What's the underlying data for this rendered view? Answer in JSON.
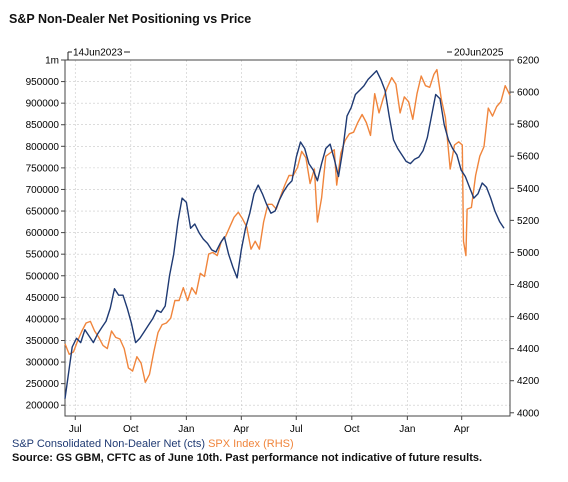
{
  "title": "S&P Non-Dealer Net Positioning vs Price",
  "legend": {
    "nd_label": "S&P Consolidated Non-Dealer Net (cts)",
    "spx_label": "SPX Index (RHS)"
  },
  "source": "Source: GS GBM, CFTC as of June 10th. Past performance not indicative of future results.",
  "colors": {
    "nd": "#1f3a73",
    "spx": "#f0853c",
    "grid": "#c8c8c8"
  },
  "chart_data": {
    "type": "line",
    "date_start_label": "14Jun2023",
    "date_end_label": "20Jun2025",
    "x_ticks": [
      "Jul",
      "Oct",
      "Jan",
      "Apr",
      "Jul",
      "Oct",
      "Jan",
      "Apr"
    ],
    "x_tick_dates": [
      "2023-07-01",
      "2023-10-01",
      "2024-01-01",
      "2024-04-01",
      "2024-07-01",
      "2024-10-01",
      "2025-01-01",
      "2025-04-01"
    ],
    "xlim": [
      "2023-06-14",
      "2025-06-20"
    ],
    "y_left": {
      "ylim": [
        175000,
        1000000
      ],
      "ticks": [
        200000,
        250000,
        300000,
        350000,
        400000,
        450000,
        500000,
        550000,
        600000,
        650000,
        700000,
        750000,
        800000,
        850000,
        900000,
        950000,
        1000000
      ],
      "tick_labels": [
        "200000",
        "250000",
        "300000",
        "350000",
        "400000",
        "450000",
        "500000",
        "550000",
        "600000",
        "650000",
        "700000",
        "750000",
        "800000",
        "850000",
        "900000",
        "950000",
        "1m"
      ]
    },
    "y_right": {
      "ylim": [
        3980,
        6200
      ],
      "ticks": [
        4000,
        4200,
        4400,
        4600,
        4800,
        5000,
        5200,
        5400,
        5600,
        5800,
        6000,
        6200
      ],
      "tick_labels": [
        "4000",
        "4200",
        "4400",
        "4600",
        "4800",
        "5000",
        "5200",
        "5400",
        "5600",
        "5800",
        "6000",
        "6200"
      ]
    },
    "grid": true,
    "series": [
      {
        "name": "S&P Consolidated Non-Dealer Net (cts)",
        "axis": "left",
        "points": [
          [
            "2023-06-14",
            215000
          ],
          [
            "2023-06-20",
            275000
          ],
          [
            "2023-06-26",
            335000
          ],
          [
            "2023-07-03",
            355000
          ],
          [
            "2023-07-10",
            345000
          ],
          [
            "2023-07-17",
            375000
          ],
          [
            "2023-07-24",
            360000
          ],
          [
            "2023-07-31",
            345000
          ],
          [
            "2023-08-07",
            365000
          ],
          [
            "2023-08-14",
            380000
          ],
          [
            "2023-08-21",
            395000
          ],
          [
            "2023-08-28",
            425000
          ],
          [
            "2023-09-04",
            470000
          ],
          [
            "2023-09-11",
            455000
          ],
          [
            "2023-09-18",
            455000
          ],
          [
            "2023-09-25",
            425000
          ],
          [
            "2023-10-02",
            390000
          ],
          [
            "2023-10-09",
            345000
          ],
          [
            "2023-10-16",
            355000
          ],
          [
            "2023-10-23",
            370000
          ],
          [
            "2023-10-30",
            385000
          ],
          [
            "2023-11-06",
            400000
          ],
          [
            "2023-11-13",
            420000
          ],
          [
            "2023-11-20",
            415000
          ],
          [
            "2023-11-27",
            430000
          ],
          [
            "2023-12-04",
            500000
          ],
          [
            "2023-12-11",
            550000
          ],
          [
            "2023-12-18",
            625000
          ],
          [
            "2023-12-25",
            680000
          ],
          [
            "2024-01-01",
            670000
          ],
          [
            "2024-01-08",
            610000
          ],
          [
            "2024-01-15",
            620000
          ],
          [
            "2024-01-22",
            600000
          ],
          [
            "2024-01-29",
            585000
          ],
          [
            "2024-02-05",
            575000
          ],
          [
            "2024-02-12",
            560000
          ],
          [
            "2024-02-19",
            555000
          ],
          [
            "2024-02-26",
            575000
          ],
          [
            "2024-03-04",
            590000
          ],
          [
            "2024-03-11",
            550000
          ],
          [
            "2024-03-18",
            520000
          ],
          [
            "2024-03-25",
            495000
          ],
          [
            "2024-04-01",
            560000
          ],
          [
            "2024-04-08",
            610000
          ],
          [
            "2024-04-15",
            645000
          ],
          [
            "2024-04-22",
            690000
          ],
          [
            "2024-04-29",
            710000
          ],
          [
            "2024-05-06",
            690000
          ],
          [
            "2024-05-13",
            665000
          ],
          [
            "2024-05-20",
            645000
          ],
          [
            "2024-05-27",
            650000
          ],
          [
            "2024-06-03",
            675000
          ],
          [
            "2024-06-10",
            695000
          ],
          [
            "2024-06-17",
            710000
          ],
          [
            "2024-06-24",
            720000
          ],
          [
            "2024-07-01",
            775000
          ],
          [
            "2024-07-08",
            810000
          ],
          [
            "2024-07-15",
            795000
          ],
          [
            "2024-07-22",
            760000
          ],
          [
            "2024-07-29",
            745000
          ],
          [
            "2024-08-05",
            720000
          ],
          [
            "2024-08-12",
            760000
          ],
          [
            "2024-08-19",
            795000
          ],
          [
            "2024-08-26",
            805000
          ],
          [
            "2024-09-02",
            770000
          ],
          [
            "2024-09-09",
            730000
          ],
          [
            "2024-09-16",
            790000
          ],
          [
            "2024-09-23",
            870000
          ],
          [
            "2024-09-30",
            890000
          ],
          [
            "2024-10-07",
            920000
          ],
          [
            "2024-10-14",
            930000
          ],
          [
            "2024-10-21",
            940000
          ],
          [
            "2024-10-28",
            955000
          ],
          [
            "2024-11-04",
            965000
          ],
          [
            "2024-11-11",
            975000
          ],
          [
            "2024-11-18",
            955000
          ],
          [
            "2024-11-25",
            930000
          ],
          [
            "2024-12-02",
            870000
          ],
          [
            "2024-12-09",
            815000
          ],
          [
            "2024-12-16",
            795000
          ],
          [
            "2024-12-23",
            780000
          ],
          [
            "2024-12-30",
            765000
          ],
          [
            "2025-01-06",
            760000
          ],
          [
            "2025-01-13",
            770000
          ],
          [
            "2025-01-20",
            775000
          ],
          [
            "2025-01-27",
            790000
          ],
          [
            "2025-02-03",
            820000
          ],
          [
            "2025-02-10",
            870000
          ],
          [
            "2025-02-17",
            920000
          ],
          [
            "2025-02-24",
            910000
          ],
          [
            "2025-03-03",
            850000
          ],
          [
            "2025-03-10",
            815000
          ],
          [
            "2025-03-17",
            795000
          ],
          [
            "2025-03-24",
            780000
          ],
          [
            "2025-03-31",
            745000
          ],
          [
            "2025-04-07",
            730000
          ],
          [
            "2025-04-14",
            705000
          ],
          [
            "2025-04-21",
            680000
          ],
          [
            "2025-04-28",
            690000
          ],
          [
            "2025-05-05",
            715000
          ],
          [
            "2025-05-12",
            705000
          ],
          [
            "2025-05-19",
            680000
          ],
          [
            "2025-05-26",
            650000
          ],
          [
            "2025-06-03",
            625000
          ],
          [
            "2025-06-10",
            610000
          ]
        ]
      },
      {
        "name": "SPX Index (RHS)",
        "axis": "right",
        "points": [
          [
            "2023-06-14",
            4430
          ],
          [
            "2023-06-21",
            4365
          ],
          [
            "2023-06-28",
            4380
          ],
          [
            "2023-07-05",
            4450
          ],
          [
            "2023-07-12",
            4510
          ],
          [
            "2023-07-19",
            4560
          ],
          [
            "2023-07-26",
            4570
          ],
          [
            "2023-08-02",
            4510
          ],
          [
            "2023-08-09",
            4470
          ],
          [
            "2023-08-16",
            4420
          ],
          [
            "2023-08-23",
            4400
          ],
          [
            "2023-08-30",
            4510
          ],
          [
            "2023-09-06",
            4470
          ],
          [
            "2023-09-13",
            4460
          ],
          [
            "2023-09-20",
            4400
          ],
          [
            "2023-09-27",
            4280
          ],
          [
            "2023-10-04",
            4260
          ],
          [
            "2023-10-11",
            4350
          ],
          [
            "2023-10-18",
            4310
          ],
          [
            "2023-10-25",
            4190
          ],
          [
            "2023-11-01",
            4240
          ],
          [
            "2023-11-08",
            4380
          ],
          [
            "2023-11-15",
            4500
          ],
          [
            "2023-11-22",
            4550
          ],
          [
            "2023-11-29",
            4560
          ],
          [
            "2023-12-06",
            4590
          ],
          [
            "2023-12-13",
            4700
          ],
          [
            "2023-12-20",
            4700
          ],
          [
            "2023-12-27",
            4780
          ],
          [
            "2024-01-03",
            4700
          ],
          [
            "2024-01-10",
            4780
          ],
          [
            "2024-01-17",
            4740
          ],
          [
            "2024-01-24",
            4870
          ],
          [
            "2024-01-31",
            4850
          ],
          [
            "2024-02-07",
            4990
          ],
          [
            "2024-02-14",
            5000
          ],
          [
            "2024-02-21",
            4980
          ],
          [
            "2024-02-28",
            5070
          ],
          [
            "2024-03-06",
            5100
          ],
          [
            "2024-03-13",
            5160
          ],
          [
            "2024-03-20",
            5220
          ],
          [
            "2024-03-27",
            5250
          ],
          [
            "2024-04-03",
            5210
          ],
          [
            "2024-04-10",
            5160
          ],
          [
            "2024-04-17",
            5020
          ],
          [
            "2024-04-24",
            5070
          ],
          [
            "2024-05-01",
            5020
          ],
          [
            "2024-05-08",
            5190
          ],
          [
            "2024-05-15",
            5300
          ],
          [
            "2024-05-22",
            5300
          ],
          [
            "2024-05-29",
            5270
          ],
          [
            "2024-06-05",
            5350
          ],
          [
            "2024-06-12",
            5420
          ],
          [
            "2024-06-19",
            5480
          ],
          [
            "2024-06-26",
            5480
          ],
          [
            "2024-07-03",
            5530
          ],
          [
            "2024-07-10",
            5630
          ],
          [
            "2024-07-17",
            5590
          ],
          [
            "2024-07-24",
            5430
          ],
          [
            "2024-07-31",
            5520
          ],
          [
            "2024-08-05",
            5190
          ],
          [
            "2024-08-12",
            5340
          ],
          [
            "2024-08-19",
            5600
          ],
          [
            "2024-08-26",
            5620
          ],
          [
            "2024-09-02",
            5640
          ],
          [
            "2024-09-06",
            5420
          ],
          [
            "2024-09-13",
            5620
          ],
          [
            "2024-09-20",
            5700
          ],
          [
            "2024-09-27",
            5740
          ],
          [
            "2024-10-04",
            5750
          ],
          [
            "2024-10-11",
            5810
          ],
          [
            "2024-10-18",
            5860
          ],
          [
            "2024-10-25",
            5810
          ],
          [
            "2024-11-01",
            5730
          ],
          [
            "2024-11-08",
            5990
          ],
          [
            "2024-11-15",
            5870
          ],
          [
            "2024-11-22",
            5960
          ],
          [
            "2024-11-29",
            6030
          ],
          [
            "2024-12-06",
            6090
          ],
          [
            "2024-12-13",
            6050
          ],
          [
            "2024-12-20",
            5870
          ],
          [
            "2024-12-27",
            5970
          ],
          [
            "2025-01-03",
            5940
          ],
          [
            "2025-01-10",
            5830
          ],
          [
            "2025-01-17",
            5990
          ],
          [
            "2025-01-24",
            6100
          ],
          [
            "2025-01-31",
            6040
          ],
          [
            "2025-02-07",
            6030
          ],
          [
            "2025-02-14",
            6110
          ],
          [
            "2025-02-19",
            6140
          ],
          [
            "2025-02-26",
            5960
          ],
          [
            "2025-03-05",
            5840
          ],
          [
            "2025-03-13",
            5520
          ],
          [
            "2025-03-20",
            5670
          ],
          [
            "2025-03-27",
            5690
          ],
          [
            "2025-04-02",
            5670
          ],
          [
            "2025-04-04",
            5070
          ],
          [
            "2025-04-08",
            4980
          ],
          [
            "2025-04-10",
            5270
          ],
          [
            "2025-04-17",
            5280
          ],
          [
            "2025-04-24",
            5480
          ],
          [
            "2025-05-01",
            5600
          ],
          [
            "2025-05-08",
            5660
          ],
          [
            "2025-05-15",
            5900
          ],
          [
            "2025-05-22",
            5850
          ],
          [
            "2025-05-29",
            5910
          ],
          [
            "2025-06-05",
            5940
          ],
          [
            "2025-06-12",
            6040
          ],
          [
            "2025-06-20",
            5980
          ]
        ]
      }
    ]
  }
}
